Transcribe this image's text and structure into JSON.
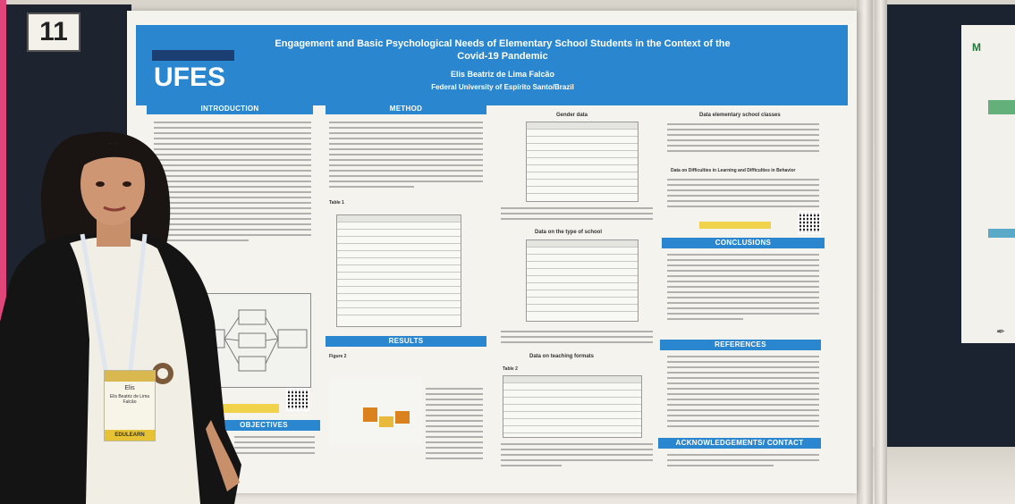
{
  "board_number": "11",
  "header": {
    "title": "Engagement and Basic Psychological Needs of Elementary School Students in the Context of the Covid-19 Pandemic",
    "author": "Elis Beatriz de Lima Falcão",
    "affiliation": "Federal University of Espírito Santo/Brazil",
    "logo_text": "UFES"
  },
  "sections": {
    "introduction": "INTRODUCTION",
    "method": "METHOD",
    "results": "RESULTS",
    "objectives": "OBJECTIVES",
    "gender_data": "Gender data",
    "year_of_school": "Data on the type of school",
    "teaching_formats": "Data on teaching formats",
    "elementary_classes": "Data elementary school classes",
    "difficulties": "Data on Difficulties in Learning and Difficulties in Behavior",
    "conclusions": "CONCLUSIONS",
    "references": "REFERENCES",
    "acknowledgements": "ACKNOWLEDGEMENTS/ CONTACT"
  },
  "captions": {
    "table1": "Table 1",
    "figure2": "Figure 2",
    "table2": "Table 2"
  },
  "badge": {
    "first_name": "Elis",
    "event_strip": "EDULEARN"
  },
  "side_poster": {
    "title": "M"
  },
  "colors": {
    "header_blue": "#2a86cf",
    "pink_edge": "#e0467a",
    "badge_yellow": "#e6c234",
    "chart_orange": "#d9821e",
    "chart_yellow": "#e8b93a"
  }
}
